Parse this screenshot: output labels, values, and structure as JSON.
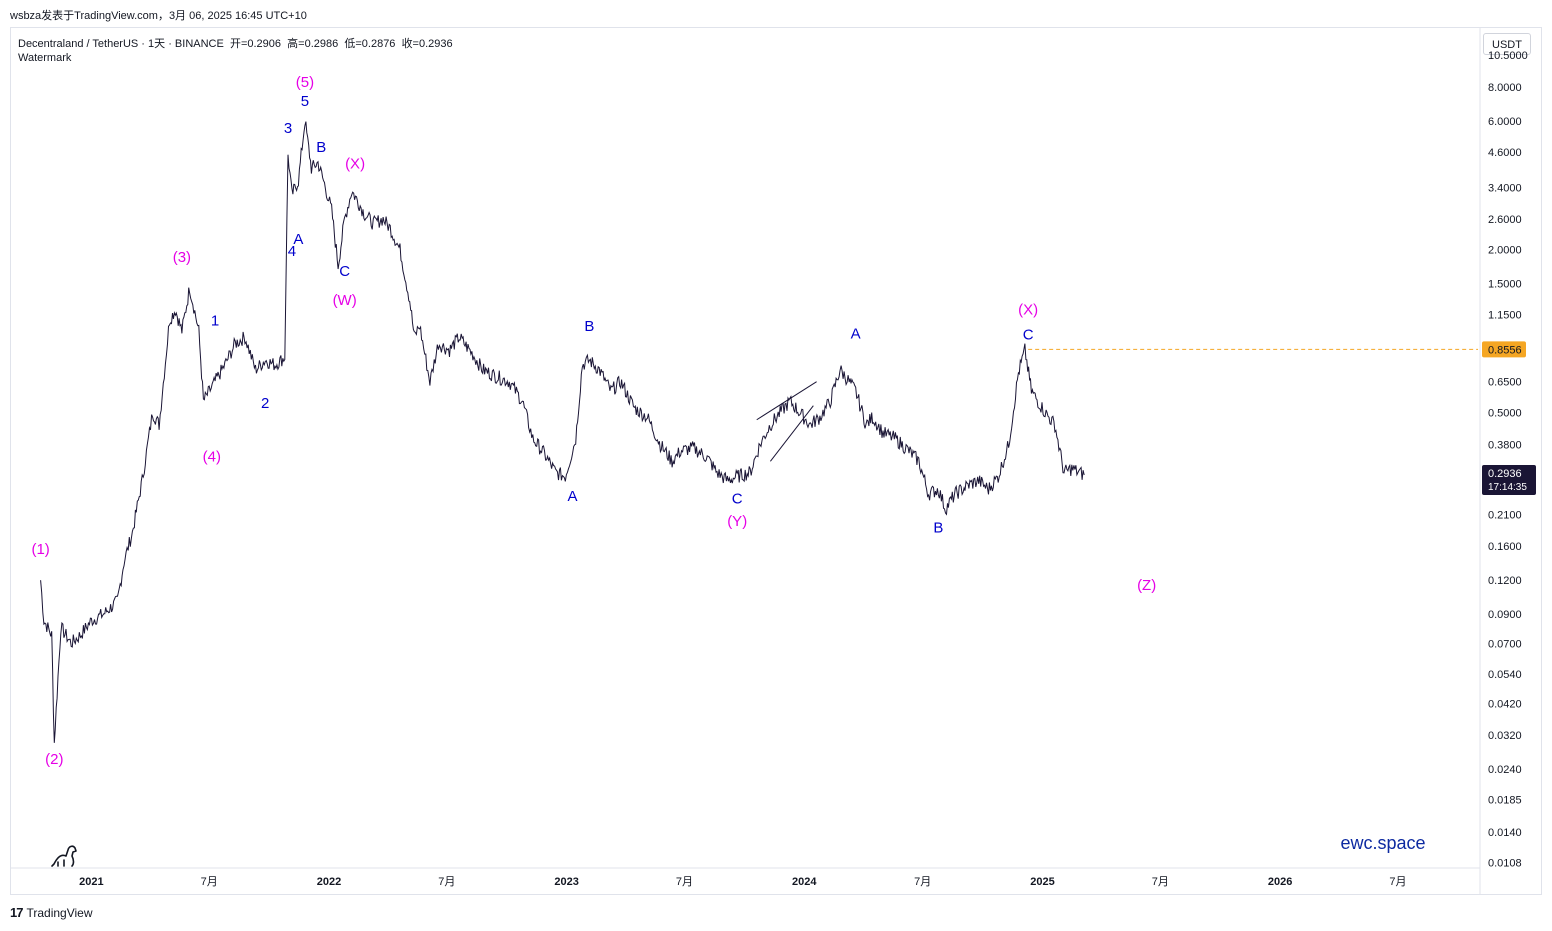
{
  "header": {
    "text": "wsbza发表于TradingView.com，3月 06, 2025 16:45 UTC+10"
  },
  "symbol": {
    "name": "Decentraland / TetherUS · 1天 · BINANCE",
    "open": "开=0.2906",
    "high": "高=0.2986",
    "low": "低=0.2876",
    "close": "收=0.2936"
  },
  "watermark_label": "Watermark",
  "currency": "USDT",
  "branding": {
    "site": "ewc.space",
    "footer": "TradingView"
  },
  "colors": {
    "price_line": "#1a1535",
    "wave_major": "#e600e6",
    "wave_minor": "#0000cc",
    "level_line": "#f5a623",
    "price_badge": "#1a1535"
  },
  "chart_data": {
    "type": "line",
    "scale": "log",
    "y_ticks": [
      "10.5000",
      "8.0000",
      "6.0000",
      "4.6000",
      "3.4000",
      "2.6000",
      "2.0000",
      "1.5000",
      "1.1500",
      "0.6500",
      "0.5000",
      "0.3800",
      "0.2100",
      "0.1600",
      "0.1200",
      "0.0900",
      "0.0700",
      "0.0540",
      "0.0420",
      "0.0320",
      "0.0240",
      "0.0185",
      "0.0140",
      "0.0108"
    ],
    "x_ticks": [
      "2021",
      "7月",
      "2022",
      "7月",
      "2023",
      "7月",
      "2024",
      "7月",
      "2025",
      "7月",
      "2026",
      "7月"
    ],
    "x_tick_dates": [
      "2021-01-01",
      "2021-07-01",
      "2022-01-01",
      "2022-07-01",
      "2023-01-01",
      "2023-07-01",
      "2024-01-01",
      "2024-07-01",
      "2025-01-01",
      "2025-07-01",
      "2026-01-01",
      "2026-07-01"
    ],
    "ylim": [
      0.0105,
      13
    ],
    "series": [
      {
        "x": [
          "2020-10-15",
          "2020-10-20",
          "2020-11-01",
          "2020-11-05",
          "2020-11-15",
          "2020-12-01",
          "2020-12-15",
          "2021-01-01",
          "2021-01-20",
          "2021-02-10",
          "2021-02-20",
          "2021-03-05",
          "2021-03-20",
          "2021-04-05",
          "2021-04-15",
          "2021-05-01",
          "2021-05-10",
          "2021-05-20",
          "2021-06-01",
          "2021-06-15",
          "2021-06-22",
          "2021-07-10",
          "2021-07-25",
          "2021-08-10",
          "2021-08-25",
          "2021-09-10",
          "2021-09-25",
          "2021-10-10",
          "2021-10-25",
          "2021-10-30",
          "2021-11-05",
          "2021-11-15",
          "2021-11-25",
          "2021-12-05",
          "2021-12-15",
          "2021-12-25",
          "2022-01-05",
          "2022-01-15",
          "2022-01-25",
          "2022-02-05",
          "2022-02-15",
          "2022-02-25",
          "2022-03-10",
          "2022-03-25",
          "2022-04-05",
          "2022-04-20",
          "2022-05-05",
          "2022-05-12",
          "2022-05-20",
          "2022-06-05",
          "2022-06-18",
          "2022-07-05",
          "2022-07-20",
          "2022-08-10",
          "2022-08-25",
          "2022-09-15",
          "2022-10-05",
          "2022-10-25",
          "2022-11-10",
          "2022-11-25",
          "2022-12-15",
          "2022-12-30",
          "2023-01-15",
          "2023-01-25",
          "2023-02-05",
          "2023-02-20",
          "2023-03-10",
          "2023-03-25",
          "2023-04-15",
          "2023-05-05",
          "2023-05-25",
          "2023-06-12",
          "2023-06-25",
          "2023-07-15",
          "2023-08-05",
          "2023-08-20",
          "2023-09-05",
          "2023-09-20",
          "2023-10-10",
          "2023-10-25",
          "2023-11-10",
          "2023-11-25",
          "2023-12-10",
          "2023-12-25",
          "2024-01-10",
          "2024-01-25",
          "2024-02-10",
          "2024-02-25",
          "2024-03-10",
          "2024-03-20",
          "2024-04-05",
          "2024-04-15",
          "2024-05-01",
          "2024-05-20",
          "2024-06-10",
          "2024-06-25",
          "2024-07-10",
          "2024-07-25",
          "2024-08-05",
          "2024-08-20",
          "2024-09-10",
          "2024-09-25",
          "2024-10-10",
          "2024-10-25",
          "2024-11-10",
          "2024-11-25",
          "2024-12-05",
          "2024-12-15",
          "2024-12-25",
          "2025-01-05",
          "2025-01-20",
          "2025-02-03",
          "2025-02-15",
          "2025-03-06"
        ],
        "y": [
          0.12,
          0.085,
          0.075,
          0.03,
          0.08,
          0.07,
          0.075,
          0.085,
          0.09,
          0.1,
          0.14,
          0.18,
          0.28,
          0.5,
          0.45,
          1.1,
          1.2,
          1.0,
          1.45,
          1.0,
          0.55,
          0.65,
          0.75,
          0.9,
          0.95,
          0.72,
          0.78,
          0.75,
          0.8,
          4.5,
          3.2,
          3.6,
          6.0,
          4.0,
          4.2,
          3.5,
          2.8,
          1.75,
          2.6,
          3.3,
          3.0,
          2.7,
          2.5,
          2.6,
          2.4,
          2.0,
          1.3,
          0.95,
          1.05,
          0.65,
          0.9,
          0.85,
          0.95,
          0.82,
          0.72,
          0.68,
          0.65,
          0.55,
          0.4,
          0.36,
          0.3,
          0.29,
          0.4,
          0.75,
          0.78,
          0.72,
          0.6,
          0.65,
          0.52,
          0.48,
          0.38,
          0.33,
          0.36,
          0.37,
          0.34,
          0.3,
          0.28,
          0.29,
          0.3,
          0.38,
          0.45,
          0.5,
          0.55,
          0.5,
          0.45,
          0.48,
          0.55,
          0.72,
          0.65,
          0.6,
          0.45,
          0.48,
          0.42,
          0.4,
          0.36,
          0.33,
          0.25,
          0.26,
          0.22,
          0.25,
          0.27,
          0.28,
          0.26,
          0.29,
          0.38,
          0.7,
          0.85,
          0.6,
          0.55,
          0.5,
          0.45,
          0.3,
          0.31,
          0.2936
        ]
      }
    ],
    "level": {
      "value": 0.8556,
      "label": "0.8556",
      "from": "2024-12-10"
    },
    "last": {
      "value": "0.2936",
      "countdown": "17:14:35"
    },
    "annotations": [
      {
        "t": "(1)",
        "c": "major",
        "d": "2020-10-15",
        "v": 0.15
      },
      {
        "t": "(2)",
        "c": "major",
        "d": "2020-11-05",
        "v": 0.025
      },
      {
        "t": "(3)",
        "c": "major",
        "d": "2021-05-20",
        "v": 1.8
      },
      {
        "t": "1",
        "c": "minor",
        "d": "2021-07-10",
        "v": 1.05
      },
      {
        "t": "(4)",
        "c": "major",
        "d": "2021-07-05",
        "v": 0.33
      },
      {
        "t": "2",
        "c": "minor",
        "d": "2021-09-25",
        "v": 0.52
      },
      {
        "t": "3",
        "c": "minor",
        "d": "2021-10-30",
        "v": 5.4
      },
      {
        "t": "4",
        "c": "minor",
        "d": "2021-11-05",
        "v": 1.9
      },
      {
        "t": "A",
        "c": "minor",
        "d": "2021-11-15",
        "v": 2.1
      },
      {
        "t": "5",
        "c": "minor",
        "d": "2021-11-25",
        "v": 6.8
      },
      {
        "t": "(5)",
        "c": "major",
        "d": "2021-11-25",
        "v": 8.0
      },
      {
        "t": "B",
        "c": "minor",
        "d": "2021-12-20",
        "v": 4.6
      },
      {
        "t": "(X)",
        "c": "major",
        "d": "2022-02-10",
        "v": 4.0
      },
      {
        "t": "C",
        "c": "minor",
        "d": "2022-01-25",
        "v": 1.6
      },
      {
        "t": "(W)",
        "c": "major",
        "d": "2022-01-25",
        "v": 1.25
      },
      {
        "t": "B",
        "c": "minor",
        "d": "2023-02-05",
        "v": 1.0
      },
      {
        "t": "A",
        "c": "minor",
        "d": "2023-01-10",
        "v": 0.235
      },
      {
        "t": "C",
        "c": "minor",
        "d": "2023-09-20",
        "v": 0.23
      },
      {
        "t": "(Y)",
        "c": "major",
        "d": "2023-09-20",
        "v": 0.19
      },
      {
        "t": "A",
        "c": "minor",
        "d": "2024-03-20",
        "v": 0.94
      },
      {
        "t": "B",
        "c": "minor",
        "d": "2024-07-25",
        "v": 0.18
      },
      {
        "t": "(X)",
        "c": "major",
        "d": "2024-12-10",
        "v": 1.15
      },
      {
        "t": "C",
        "c": "minor",
        "d": "2024-12-10",
        "v": 0.93
      },
      {
        "t": "(Z)",
        "c": "major",
        "d": "2025-06-10",
        "v": 0.11
      }
    ]
  }
}
